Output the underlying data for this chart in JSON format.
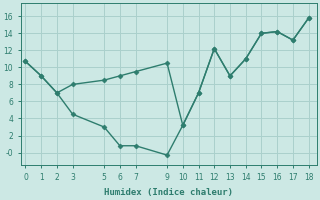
{
  "xlabel": "Humidex (Indice chaleur)",
  "bg_color": "#cce8e4",
  "grid_color": "#aad0cc",
  "line_color": "#2e7d6e",
  "line1_x": [
    0,
    1,
    2,
    3,
    5,
    6,
    7,
    9,
    10,
    11,
    12,
    13,
    14,
    15,
    16,
    17,
    18
  ],
  "line1_y": [
    10.7,
    9.0,
    7.0,
    8.0,
    8.5,
    9.0,
    9.5,
    10.5,
    3.2,
    7.0,
    12.2,
    9.0,
    11.0,
    14.0,
    14.2,
    13.2,
    15.8
  ],
  "line2_x": [
    0,
    1,
    2,
    3,
    5,
    6,
    7,
    9,
    10,
    11,
    12,
    13,
    14,
    15,
    16,
    17,
    18
  ],
  "line2_y": [
    10.7,
    9.0,
    7.0,
    4.5,
    3.0,
    0.8,
    0.8,
    -0.3,
    3.2,
    7.0,
    12.2,
    9.0,
    11.0,
    14.0,
    14.2,
    13.2,
    15.8
  ],
  "xlim": [
    -0.3,
    18.5
  ],
  "ylim": [
    -1.5,
    17.5
  ],
  "xticks": [
    0,
    1,
    2,
    3,
    5,
    6,
    7,
    9,
    10,
    11,
    12,
    13,
    14,
    15,
    16,
    17,
    18
  ],
  "yticks": [
    0,
    2,
    4,
    6,
    8,
    10,
    12,
    14,
    16
  ],
  "ytick_labels": [
    "-0",
    "2",
    "4",
    "6",
    "8",
    "10",
    "12",
    "14",
    "16"
  ],
  "marker": "D",
  "marker_size": 2.5,
  "line_width": 1.0,
  "tick_fontsize": 5.5,
  "xlabel_fontsize": 6.5
}
